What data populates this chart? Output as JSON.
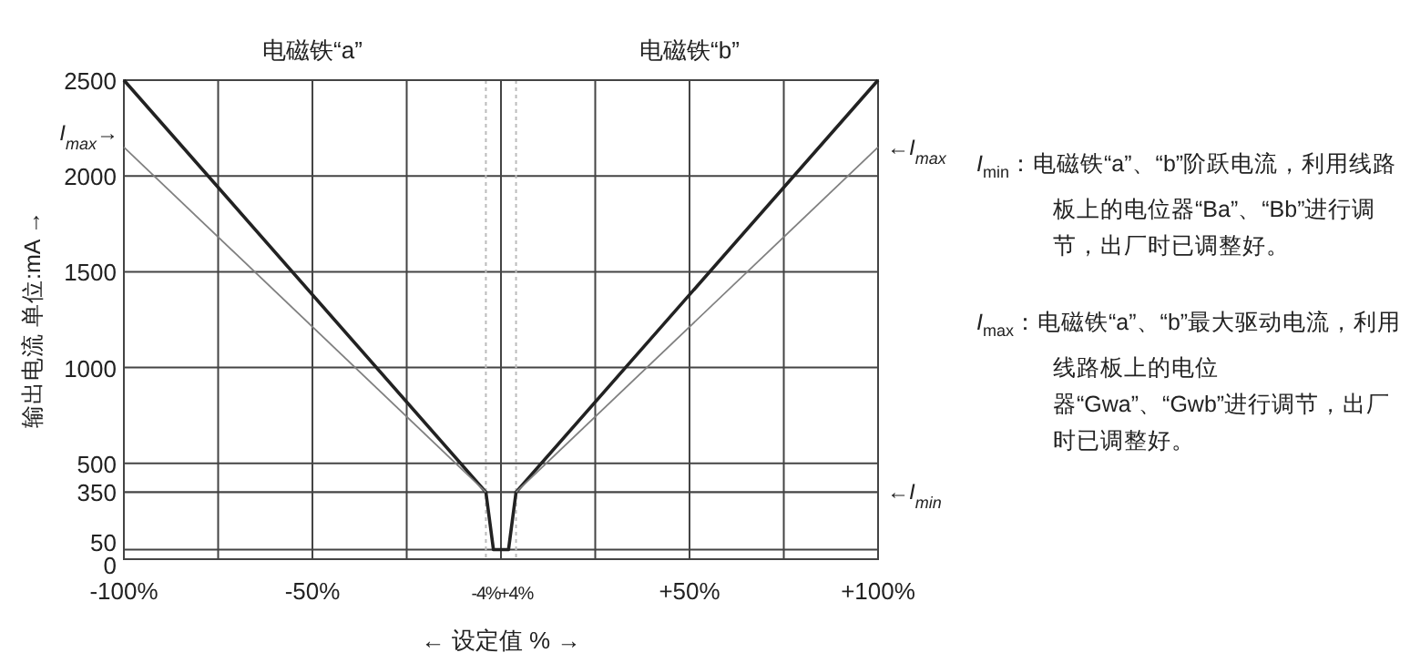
{
  "chart_data": {
    "type": "line",
    "xlabel": "← 设定值 % →",
    "ylabel": "输出电流  单位:mA →",
    "xlim": [
      -100,
      100
    ],
    "ylim": [
      0,
      2500
    ],
    "xticks": [
      {
        "value": -100,
        "label": "-100%"
      },
      {
        "value": -75,
        "label": null
      },
      {
        "value": -50,
        "label": "-50%"
      },
      {
        "value": -25,
        "label": null
      },
      {
        "value": -4,
        "label": "-4%"
      },
      {
        "value": 0,
        "label": null
      },
      {
        "value": 4,
        "label": "+4%"
      },
      {
        "value": 25,
        "label": null
      },
      {
        "value": 50,
        "label": "+50%"
      },
      {
        "value": 75,
        "label": null
      },
      {
        "value": 100,
        "label": "+100%"
      }
    ],
    "yticks": [
      0,
      50,
      350,
      500,
      1000,
      1500,
      2000,
      2500
    ],
    "grid": true,
    "marker": "none",
    "line_style": "solid",
    "series": [
      {
        "color": "#222222",
        "x": [
          -100,
          -4,
          -2,
          2,
          4,
          100
        ],
        "values": [
          2500,
          350,
          50,
          50,
          350,
          2500
        ]
      },
      {
        "color": "#808080",
        "x": [
          -100,
          -4
        ],
        "values": [
          2150,
          350
        ]
      },
      {
        "color": "#808080",
        "x": [
          4,
          100
        ],
        "values": [
          350,
          2150
        ]
      }
    ],
    "ref_lines": [
      {
        "axis": "y",
        "value": 350,
        "label": "←I$_{min}$",
        "color": "#444444"
      }
    ],
    "annotations": [
      "电磁铁“a”",
      "电磁铁“b”",
      {
        "text": "I$_{max}$→",
        "x": -100,
        "y": 2150
      },
      {
        "text": "←I$_{max}$",
        "x": 100,
        "y": 2150
      },
      "I$_{min}$：电磁铁“a”、“b”阶跃电流，利用线路板上的电位器“Ba”、“Bb”进行调节，出厂时已调整好。",
      "I$_{max}$：电磁铁“a”、“b”最大驱动电流，利用线路板上的电位器“Gwa”、“Gwb”进行调节，出厂时已调整好。"
    ]
  }
}
